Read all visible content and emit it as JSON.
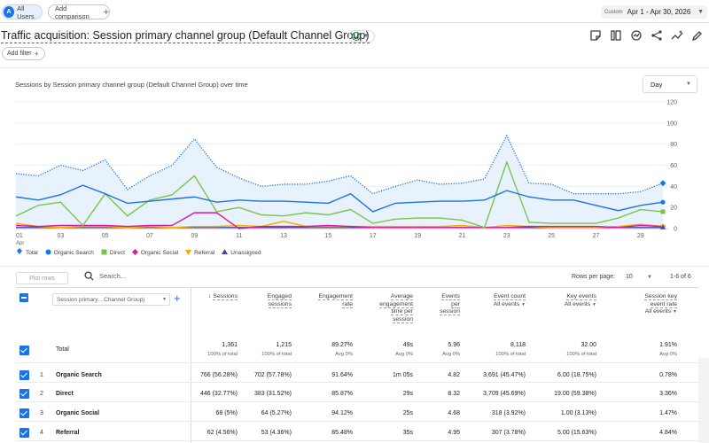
{
  "topbar": {
    "segment_avatar": "A",
    "segment_label": "All Users",
    "add_comparison": "Add comparison",
    "date_custom": "Custom",
    "date_range": "Apr 1 - Apr 30, 2026"
  },
  "report": {
    "title": "Traffic acquisition: Session primary channel group (Default Channel Group)",
    "add_filter": "Add filter"
  },
  "chart_title": "Sessions by Session primary channel group (Default Channel Group) over time",
  "granularity": "Day",
  "legend": [
    {
      "label": "Total",
      "color": "#1a73e8"
    },
    {
      "label": "Organic Search",
      "color": "#1a73e8"
    },
    {
      "label": "Direct",
      "color": "#7cc349"
    },
    {
      "label": "Organic Social",
      "color": "#d81b9c"
    },
    {
      "label": "Referral",
      "color": "#f9ab00"
    },
    {
      "label": "Unassigned",
      "color": "#3949ab"
    }
  ],
  "chart_data": {
    "type": "line",
    "title": "Sessions by Session primary channel group (Default Channel Group) over time",
    "x": [
      1,
      2,
      3,
      4,
      5,
      6,
      7,
      8,
      9,
      10,
      11,
      12,
      13,
      14,
      15,
      16,
      17,
      18,
      19,
      20,
      21,
      22,
      23,
      24,
      25,
      26,
      27,
      28,
      29,
      30
    ],
    "xtick_labels": [
      "01",
      "03",
      "05",
      "07",
      "09",
      "11",
      "13",
      "15",
      "17",
      "19",
      "21",
      "23",
      "25",
      "27",
      "29"
    ],
    "xtick_sublabel": "Apr",
    "yticks": [
      0,
      20,
      40,
      60,
      80,
      100,
      120
    ],
    "ylim": [
      0,
      120
    ],
    "y_axis_position": "right",
    "grid": true,
    "legend_position": "bottom-left",
    "series": [
      {
        "name": "Total",
        "color": "#1a73e8",
        "style": "dotted",
        "values": [
          52,
          50,
          60,
          55,
          65,
          37,
          50,
          60,
          85,
          58,
          48,
          40,
          42,
          42,
          45,
          50,
          33,
          40,
          46,
          42,
          43,
          47,
          88,
          43,
          42,
          33,
          33,
          33,
          35,
          43
        ]
      },
      {
        "name": "Organic Search",
        "color": "#1a73e8",
        "style": "solid",
        "values": [
          30,
          27,
          32,
          41,
          33,
          24,
          26,
          28,
          30,
          25,
          27,
          26,
          26,
          25,
          24,
          33,
          16,
          24,
          25,
          26,
          26,
          27,
          36,
          30,
          27,
          27,
          22,
          17,
          22,
          25
        ]
      },
      {
        "name": "Direct",
        "color": "#7cc349",
        "style": "solid",
        "values": [
          12,
          22,
          25,
          3,
          33,
          12,
          27,
          32,
          50,
          16,
          20,
          13,
          12,
          15,
          13,
          18,
          5,
          9,
          10,
          10,
          8,
          1,
          63,
          6,
          5,
          5,
          5,
          10,
          18,
          16
        ]
      },
      {
        "name": "Organic Social",
        "color": "#d81b9c",
        "style": "solid",
        "values": [
          3,
          2,
          3,
          3,
          3,
          2,
          3,
          3,
          15,
          15,
          0,
          2,
          2,
          2,
          3,
          2,
          1,
          1,
          1,
          1,
          1,
          1,
          1,
          2,
          2,
          2,
          2,
          1,
          3,
          2
        ]
      },
      {
        "name": "Referral",
        "color": "#f9ab00",
        "style": "solid",
        "values": [
          5,
          2,
          1,
          2,
          2,
          1,
          2,
          1,
          2,
          2,
          3,
          2,
          7,
          2,
          2,
          2,
          2,
          2,
          2,
          2,
          3,
          1,
          3,
          2,
          1,
          1,
          1,
          2,
          4,
          2
        ]
      },
      {
        "name": "Unassigned",
        "color": "#3949ab",
        "style": "solid",
        "values": [
          1,
          1,
          1,
          1,
          1,
          1,
          1,
          1,
          1,
          1,
          1,
          1,
          1,
          1,
          1,
          1,
          1,
          1,
          1,
          1,
          1,
          1,
          1,
          1,
          1,
          1,
          1,
          1,
          1,
          1
        ]
      }
    ]
  },
  "table_controls": {
    "plot_rows": "Plot rows",
    "search_placeholder": "Search...",
    "rows_per_page_label": "Rows per page:",
    "rows_per_page": "10",
    "range": "1-6 of 6"
  },
  "table": {
    "dimension": "Session primary…Channel Group)",
    "columns": [
      {
        "label": "Sessions"
      },
      {
        "label": "Engaged sessions"
      },
      {
        "label": "Engagement rate"
      },
      {
        "label": "Average engagement time per session"
      },
      {
        "label": "Events per session"
      },
      {
        "label": "Event count",
        "sub": "All events"
      },
      {
        "label": "Key events",
        "sub": "All events"
      },
      {
        "label": "Session key event rate",
        "sub": "All events"
      }
    ],
    "total_label": "Total",
    "totals": [
      {
        "v": "1,361",
        "s": "100% of total"
      },
      {
        "v": "1,215",
        "s": "100% of total"
      },
      {
        "v": "89.27%",
        "s": "Avg 0%"
      },
      {
        "v": "49s",
        "s": "Avg 0%"
      },
      {
        "v": "5.96",
        "s": "Avg 0%"
      },
      {
        "v": "8,118",
        "s": "100% of total"
      },
      {
        "v": "32.00",
        "s": "100% of total"
      },
      {
        "v": "1.91%",
        "s": "Avg 0%"
      }
    ],
    "rows": [
      {
        "idx": "1",
        "name": "Organic Search",
        "cells": [
          "766 (56.28%)",
          "702 (57.78%)",
          "91.64%",
          "1m 05s",
          "4.82",
          "3,691 (45.47%)",
          "6.00 (18.75%)",
          "0.78%"
        ]
      },
      {
        "idx": "2",
        "name": "Direct",
        "cells": [
          "446 (32.77%)",
          "383 (31.52%)",
          "85.87%",
          "29s",
          "8.32",
          "3,709 (45.69%)",
          "19.00 (59.38%)",
          "3.36%"
        ]
      },
      {
        "idx": "3",
        "name": "Organic Social",
        "cells": [
          "68 (5%)",
          "64 (5.27%)",
          "94.12%",
          "25s",
          "4.68",
          "318 (3.92%)",
          "1.00 (3.13%)",
          "1.47%"
        ]
      },
      {
        "idx": "4",
        "name": "Referral",
        "cells": [
          "62 (4.56%)",
          "53 (4.36%)",
          "85.48%",
          "35s",
          "4.95",
          "307 (3.78%)",
          "5.00 (15.63%)",
          "4.84%"
        ]
      }
    ]
  }
}
